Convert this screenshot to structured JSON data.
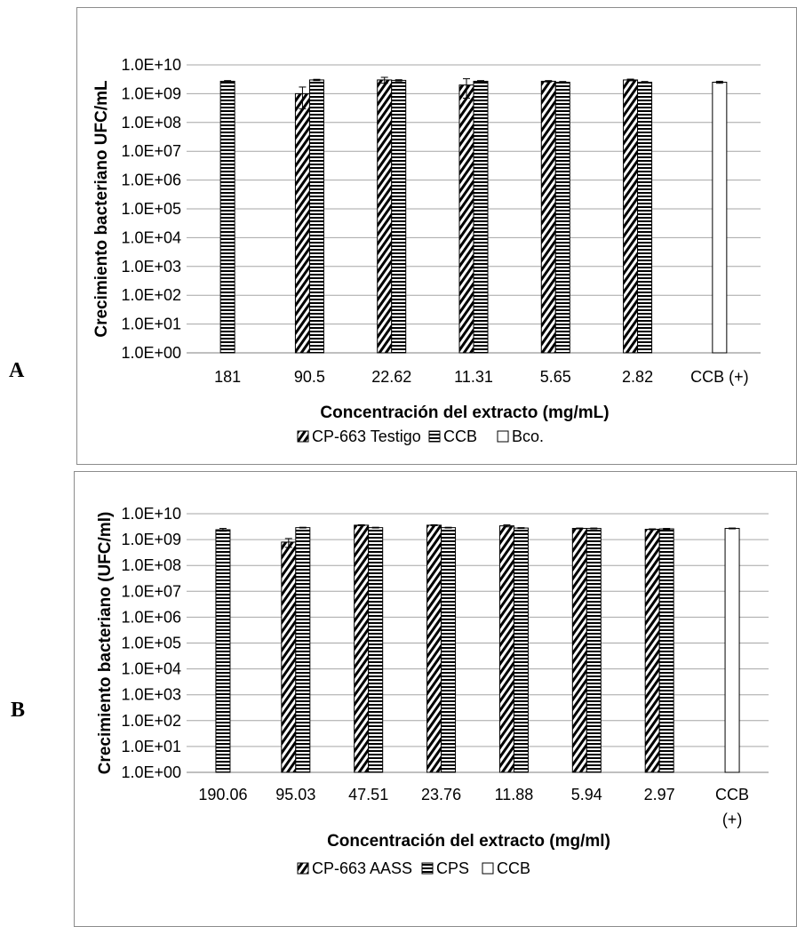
{
  "panels": [
    {
      "letter": "A",
      "chart_data": {
        "type": "bar",
        "scale": "log",
        "ylim": [
          1,
          10000000000
        ],
        "ylabel": "Crecimiento bacteriano UFC/mL",
        "xlabel": "Concentración del extracto (mg/mL)",
        "y_tick_labels": [
          "1.0E+00",
          "1.0E+01",
          "1.0E+02",
          "1.0E+03",
          "1.0E+04",
          "1.0E+05",
          "1.0E+06",
          "1.0E+07",
          "1.0E+08",
          "1.0E+09",
          "1.0E+10"
        ],
        "categories": [
          [
            "181"
          ],
          [
            "90.5"
          ],
          [
            "22.62"
          ],
          [
            "11.31"
          ],
          [
            "5.65"
          ],
          [
            "2.82"
          ],
          [
            "CCB (+)"
          ]
        ],
        "series": [
          {
            "name": "CP-663 Testigo",
            "pattern": "diag",
            "values": [
              null,
              1000000000,
              3000000000,
              2000000000,
              2700000000,
              3000000000,
              null
            ],
            "errors": [
              null,
              700000000,
              700000000,
              1300000000,
              150000000,
              200000000,
              null
            ]
          },
          {
            "name": "CCB",
            "pattern": "horiz",
            "values": [
              2700000000,
              3000000000,
              2900000000,
              2700000000,
              2500000000,
              2500000000,
              null
            ],
            "errors": [
              150000000,
              150000000,
              150000000,
              150000000,
              150000000,
              150000000,
              null
            ]
          },
          {
            "name": "Bco.",
            "pattern": "white",
            "values": [
              null,
              null,
              null,
              null,
              null,
              null,
              2500000000
            ],
            "errors": [
              null,
              null,
              null,
              null,
              null,
              null,
              200000000
            ]
          }
        ],
        "grid": true,
        "legend": "bottom"
      }
    },
    {
      "letter": "B",
      "chart_data": {
        "type": "bar",
        "scale": "log",
        "ylim": [
          1,
          10000000000
        ],
        "ylabel": "Crecimiento bacteriano (UFC/ml)",
        "xlabel": "Concentración del extracto (mg/ml)",
        "y_tick_labels": [
          "1.0E+00",
          "1.0E+01",
          "1.0E+02",
          "1.0E+03",
          "1.0E+04",
          "1.0E+05",
          "1.0E+06",
          "1.0E+07",
          "1.0E+08",
          "1.0E+09",
          "1.0E+10"
        ],
        "categories": [
          [
            "190.06"
          ],
          [
            "95.03"
          ],
          [
            "47.51"
          ],
          [
            "23.76"
          ],
          [
            "11.88"
          ],
          [
            "5.94"
          ],
          [
            "2.97"
          ],
          [
            "CCB",
            "(+)"
          ]
        ],
        "series": [
          {
            "name": "CP-663 AASS",
            "pattern": "diag",
            "values": [
              null,
              800000000,
              3600000000,
              3600000000,
              3400000000,
              2700000000,
              2500000000,
              null
            ],
            "errors": [
              null,
              300000000,
              150000000,
              150000000,
              300000000,
              100000000,
              100000000,
              null
            ]
          },
          {
            "name": "CPS",
            "pattern": "horiz",
            "values": [
              2400000000,
              2900000000,
              2900000000,
              2900000000,
              2800000000,
              2700000000,
              2600000000,
              null
            ],
            "errors": [
              300000000,
              100000000,
              100000000,
              100000000,
              100000000,
              100000000,
              100000000,
              null
            ]
          },
          {
            "name": "CCB",
            "pattern": "white",
            "values": [
              null,
              null,
              null,
              null,
              null,
              null,
              null,
              2700000000
            ],
            "errors": [
              null,
              null,
              null,
              null,
              null,
              null,
              null,
              100000000
            ]
          }
        ],
        "grid": true,
        "legend": "bottom"
      }
    }
  ]
}
